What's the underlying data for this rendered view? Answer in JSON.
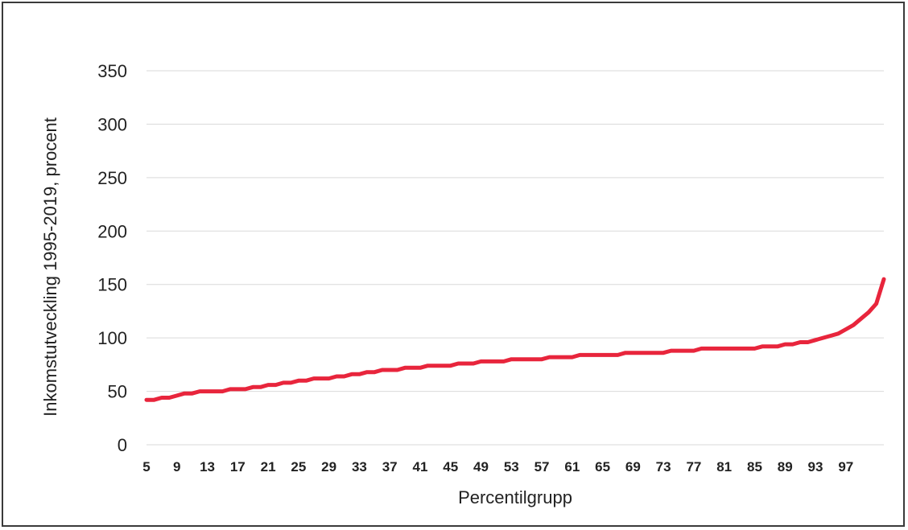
{
  "chart_data": {
    "type": "line",
    "title": "",
    "xlabel": "Percentilgrupp",
    "ylabel": "Inkomstutveckling 1995-2019, procent",
    "ylim": [
      0,
      350
    ],
    "yticks": [
      "0",
      "50",
      "100",
      "150",
      "200",
      "250",
      "300",
      "350"
    ],
    "xtick_labels": [
      "5",
      "9",
      "13",
      "17",
      "21",
      "25",
      "29",
      "33",
      "37",
      "41",
      "45",
      "49",
      "53",
      "57",
      "61",
      "65",
      "69",
      "73",
      "77",
      "81",
      "85",
      "89",
      "93",
      "97"
    ],
    "grid": true,
    "legend": "none",
    "line_color": "#e8253c",
    "x": [
      5,
      6,
      7,
      8,
      9,
      10,
      11,
      12,
      13,
      14,
      15,
      16,
      17,
      18,
      19,
      20,
      21,
      22,
      23,
      24,
      25,
      26,
      27,
      28,
      29,
      30,
      31,
      32,
      33,
      34,
      35,
      36,
      37,
      38,
      39,
      40,
      41,
      42,
      43,
      44,
      45,
      46,
      47,
      48,
      49,
      50,
      51,
      52,
      53,
      54,
      55,
      56,
      57,
      58,
      59,
      60,
      61,
      62,
      63,
      64,
      65,
      66,
      67,
      68,
      69,
      70,
      71,
      72,
      73,
      74,
      75,
      76,
      77,
      78,
      79,
      80,
      81,
      82,
      83,
      84,
      85,
      86,
      87,
      88,
      89,
      90,
      91,
      92,
      93,
      94,
      95,
      96,
      97,
      98,
      99,
      100,
      101,
      102
    ],
    "series": [
      {
        "values": [
          42,
          42,
          44,
          44,
          46,
          48,
          48,
          50,
          50,
          50,
          50,
          52,
          52,
          52,
          54,
          54,
          56,
          56,
          58,
          58,
          60,
          60,
          62,
          62,
          62,
          64,
          64,
          66,
          66,
          68,
          68,
          70,
          70,
          70,
          72,
          72,
          72,
          74,
          74,
          74,
          74,
          76,
          76,
          76,
          78,
          78,
          78,
          78,
          80,
          80,
          80,
          80,
          80,
          82,
          82,
          82,
          82,
          84,
          84,
          84,
          84,
          84,
          84,
          86,
          86,
          86,
          86,
          86,
          86,
          88,
          88,
          88,
          88,
          90,
          90,
          90,
          90,
          90,
          90,
          90,
          90,
          92,
          92,
          92,
          94,
          94,
          96,
          96,
          98,
          100,
          102,
          104,
          108,
          112,
          118,
          124,
          132,
          155
        ]
      }
    ]
  }
}
